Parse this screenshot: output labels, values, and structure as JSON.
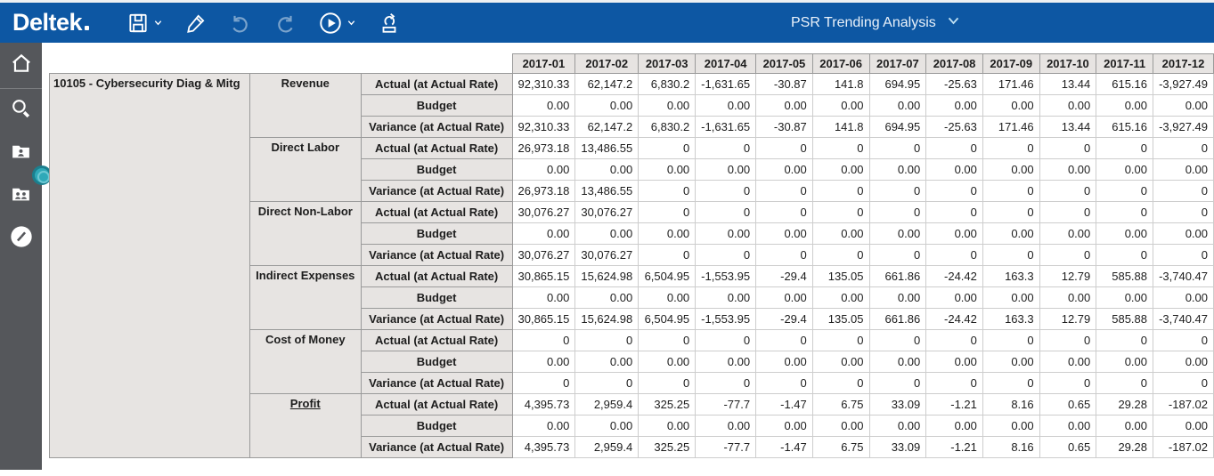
{
  "colors": {
    "topbar_blue": "#0d57a3",
    "sidebar_gray": "#55575b",
    "handle_teal": "#2fa9b8",
    "header_bg": "#e7e4e2"
  },
  "topbar": {
    "brand": "Deltek",
    "report_title": "PSR Trending Analysis",
    "icons": [
      "save-icon",
      "chevron-down-icon",
      "edit-pencil-icon",
      "undo-icon",
      "redo-icon",
      "run-play-icon",
      "chevron-down-icon",
      "submit-process-icon"
    ]
  },
  "sidebar": {
    "icons": [
      "home-icon",
      "search-icon",
      "project-folder-icon",
      "resources-folder-icon",
      "clock-icon"
    ]
  },
  "table": {
    "project": "10105 - Cybersecurity Diag & Mitg",
    "months": [
      "2017-01",
      "2017-02",
      "2017-03",
      "2017-04",
      "2017-05",
      "2017-06",
      "2017-07",
      "2017-08",
      "2017-09",
      "2017-10",
      "2017-11",
      "2017-12"
    ],
    "metric_labels": [
      "Actual (at Actual Rate)",
      "Budget",
      "Variance (at Actual Rate)"
    ],
    "groups": [
      {
        "category": "Revenue",
        "link": false,
        "actual": [
          "92,310.33",
          "62,147.2",
          "6,830.2",
          "-1,631.65",
          "-30.87",
          "141.8",
          "694.95",
          "-25.63",
          "171.46",
          "13.44",
          "615.16",
          "-3,927.49"
        ],
        "budget": [
          "0.00",
          "0.00",
          "0.00",
          "0.00",
          "0.00",
          "0.00",
          "0.00",
          "0.00",
          "0.00",
          "0.00",
          "0.00",
          "0.00"
        ],
        "variance": [
          "92,310.33",
          "62,147.2",
          "6,830.2",
          "-1,631.65",
          "-30.87",
          "141.8",
          "694.95",
          "-25.63",
          "171.46",
          "13.44",
          "615.16",
          "-3,927.49"
        ]
      },
      {
        "category": "Direct Labor",
        "link": false,
        "actual": [
          "26,973.18",
          "13,486.55",
          "0",
          "0",
          "0",
          "0",
          "0",
          "0",
          "0",
          "0",
          "0",
          "0"
        ],
        "budget": [
          "0.00",
          "0.00",
          "0.00",
          "0.00",
          "0.00",
          "0.00",
          "0.00",
          "0.00",
          "0.00",
          "0.00",
          "0.00",
          "0.00"
        ],
        "variance": [
          "26,973.18",
          "13,486.55",
          "0",
          "0",
          "0",
          "0",
          "0",
          "0",
          "0",
          "0",
          "0",
          "0"
        ]
      },
      {
        "category": "Direct Non-Labor",
        "link": false,
        "actual": [
          "30,076.27",
          "30,076.27",
          "0",
          "0",
          "0",
          "0",
          "0",
          "0",
          "0",
          "0",
          "0",
          "0"
        ],
        "budget": [
          "0.00",
          "0.00",
          "0.00",
          "0.00",
          "0.00",
          "0.00",
          "0.00",
          "0.00",
          "0.00",
          "0.00",
          "0.00",
          "0.00"
        ],
        "variance": [
          "30,076.27",
          "30,076.27",
          "0",
          "0",
          "0",
          "0",
          "0",
          "0",
          "0",
          "0",
          "0",
          "0"
        ]
      },
      {
        "category": "Indirect Expenses",
        "link": false,
        "actual": [
          "30,865.15",
          "15,624.98",
          "6,504.95",
          "-1,553.95",
          "-29.4",
          "135.05",
          "661.86",
          "-24.42",
          "163.3",
          "12.79",
          "585.88",
          "-3,740.47"
        ],
        "budget": [
          "0.00",
          "0.00",
          "0.00",
          "0.00",
          "0.00",
          "0.00",
          "0.00",
          "0.00",
          "0.00",
          "0.00",
          "0.00",
          "0.00"
        ],
        "variance": [
          "30,865.15",
          "15,624.98",
          "6,504.95",
          "-1,553.95",
          "-29.4",
          "135.05",
          "661.86",
          "-24.42",
          "163.3",
          "12.79",
          "585.88",
          "-3,740.47"
        ]
      },
      {
        "category": "Cost of Money",
        "link": false,
        "actual": [
          "0",
          "0",
          "0",
          "0",
          "0",
          "0",
          "0",
          "0",
          "0",
          "0",
          "0",
          "0"
        ],
        "budget": [
          "0.00",
          "0.00",
          "0.00",
          "0.00",
          "0.00",
          "0.00",
          "0.00",
          "0.00",
          "0.00",
          "0.00",
          "0.00",
          "0.00"
        ],
        "variance": [
          "0",
          "0",
          "0",
          "0",
          "0",
          "0",
          "0",
          "0",
          "0",
          "0",
          "0",
          "0"
        ]
      },
      {
        "category": "Profit",
        "link": true,
        "actual": [
          "4,395.73",
          "2,959.4",
          "325.25",
          "-77.7",
          "-1.47",
          "6.75",
          "33.09",
          "-1.21",
          "8.16",
          "0.65",
          "29.28",
          "-187.02"
        ],
        "budget": [
          "0.00",
          "0.00",
          "0.00",
          "0.00",
          "0.00",
          "0.00",
          "0.00",
          "0.00",
          "0.00",
          "0.00",
          "0.00",
          "0.00"
        ],
        "variance": [
          "4,395.73",
          "2,959.4",
          "325.25",
          "-77.7",
          "-1.47",
          "6.75",
          "33.09",
          "-1.21",
          "8.16",
          "0.65",
          "29.28",
          "-187.02"
        ]
      }
    ]
  }
}
